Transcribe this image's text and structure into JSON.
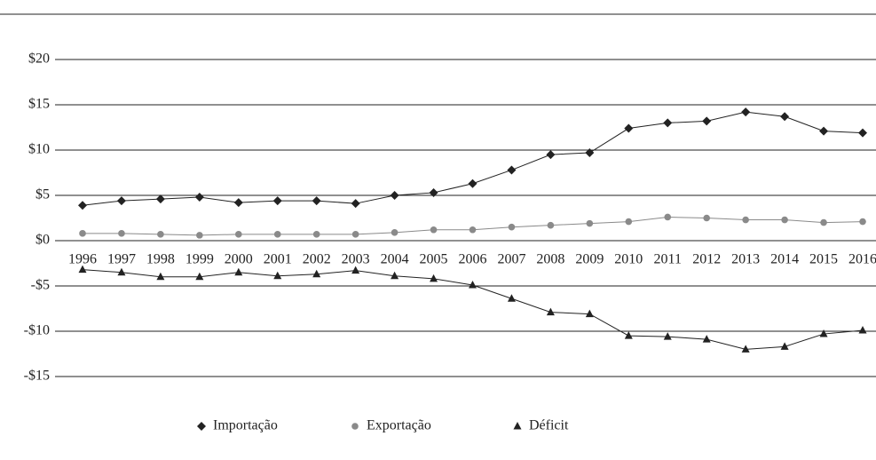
{
  "chart_data": {
    "type": "line",
    "categories": [
      "1996",
      "1997",
      "1998",
      "1999",
      "2000",
      "2001",
      "2002",
      "2003",
      "2004",
      "2005",
      "2006",
      "2007",
      "2008",
      "2009",
      "2010",
      "2011",
      "2012",
      "2013",
      "2014",
      "2015",
      "2016"
    ],
    "series": [
      {
        "name": "Importação",
        "color": "#222222",
        "marker": "diamond",
        "values": [
          3.9,
          4.4,
          4.6,
          4.8,
          4.2,
          4.4,
          4.4,
          4.1,
          5.0,
          5.3,
          6.3,
          7.8,
          9.5,
          9.7,
          12.4,
          13.0,
          13.2,
          14.2,
          13.7,
          12.1,
          11.9
        ]
      },
      {
        "name": "Exportação",
        "color": "#8a8a8a",
        "marker": "circle",
        "values": [
          0.8,
          0.8,
          0.7,
          0.6,
          0.7,
          0.7,
          0.7,
          0.7,
          0.9,
          1.2,
          1.2,
          1.5,
          1.7,
          1.9,
          2.1,
          2.6,
          2.5,
          2.3,
          2.3,
          2.0,
          2.1
        ]
      },
      {
        "name": "Déficit",
        "color": "#222222",
        "marker": "triangle",
        "values": [
          -3.2,
          -3.5,
          -4.0,
          -4.0,
          -3.5,
          -3.9,
          -3.7,
          -3.3,
          -3.9,
          -4.2,
          -4.9,
          -6.4,
          -7.9,
          -8.1,
          -10.5,
          -10.6,
          -10.9,
          -12.0,
          -11.7,
          -10.3,
          -9.9
        ]
      }
    ],
    "ylim": [
      -15,
      20
    ],
    "yticks": [
      {
        "value": -15,
        "label": "-$15"
      },
      {
        "value": -10,
        "label": "-$10"
      },
      {
        "value": -5,
        "label": "-$5"
      },
      {
        "value": 0,
        "label": "$0"
      },
      {
        "value": 5,
        "label": "$5"
      },
      {
        "value": 10,
        "label": "$10"
      },
      {
        "value": 15,
        "label": "$15"
      },
      {
        "value": 20,
        "label": "$20"
      }
    ],
    "grid": true,
    "legend": "bottom"
  }
}
